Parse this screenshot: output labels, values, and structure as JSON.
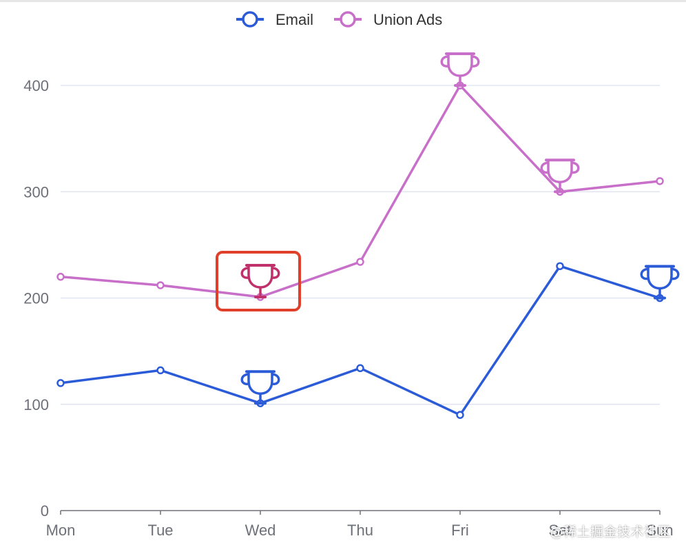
{
  "chart_data": {
    "type": "line",
    "categories": [
      "Mon",
      "Tue",
      "Wed",
      "Thu",
      "Fri",
      "Sat",
      "Sun"
    ],
    "y_ticks": [
      "0",
      "100",
      "200",
      "300",
      "400"
    ],
    "ylim": [
      0,
      400
    ],
    "grid": true,
    "legend_position": "top-center",
    "series": [
      {
        "name": "Email",
        "color": "#2c5bd8",
        "values": [
          120,
          132,
          101,
          134,
          90,
          230,
          200
        ],
        "marker_labels": [
          "Wed",
          "Sun"
        ],
        "marker_icon": "trophy-icon"
      },
      {
        "name": "Union Ads",
        "color": "#c86fc9",
        "values": [
          220,
          212,
          201,
          234,
          400,
          300,
          310
        ],
        "marker_labels": [
          "Wed",
          "Fri",
          "Sat"
        ],
        "marker_icon": "trophy-icon"
      }
    ],
    "highlight": {
      "series": "Union Ads",
      "category": "Wed",
      "color": "#e0402a",
      "marker_color": "#c0306a"
    }
  },
  "watermark": "@稀土掘金技术社区"
}
